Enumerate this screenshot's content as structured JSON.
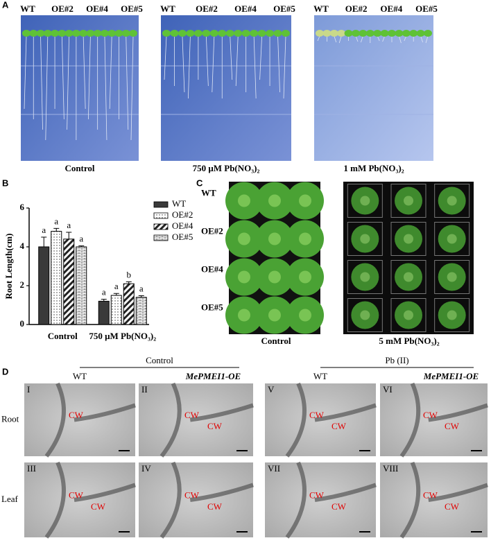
{
  "panel_a": {
    "label": "A",
    "plates": [
      {
        "genotypes": [
          "WT",
          "OE#2",
          "OE#4",
          "OE#5"
        ],
        "caption": "Control"
      },
      {
        "genotypes": [
          "WT",
          "OE#2",
          "OE#4",
          "OE#5"
        ],
        "caption": "750 μM Pb(NO₃)₂"
      },
      {
        "genotypes": [
          "WT",
          "OE#2",
          "OE#4",
          "OE#5"
        ],
        "caption": "1 mM Pb(NO₃)₂"
      }
    ]
  },
  "chart_data": {
    "type": "bar",
    "label": "B",
    "y_label": "Root Length(cm)",
    "categories": [
      "Control",
      "750 μM Pb(NO₃)₂"
    ],
    "series": [
      {
        "name": "WT",
        "color": "#3a3a3a",
        "pattern": "solid",
        "values": [
          4.0,
          1.2
        ],
        "errors": [
          0.5,
          0.1
        ],
        "letters": [
          "a",
          "a"
        ]
      },
      {
        "name": "OE#2",
        "color": "#ffffff",
        "pattern": "dots",
        "values": [
          4.8,
          1.5
        ],
        "errors": [
          0.15,
          0.1
        ],
        "letters": [
          "a",
          "a"
        ]
      },
      {
        "name": "OE#4",
        "color": "#ffffff",
        "pattern": "stripes",
        "values": [
          4.4,
          2.1
        ],
        "errors": [
          0.35,
          0.1
        ],
        "letters": [
          "a",
          "b"
        ]
      },
      {
        "name": "OE#5",
        "color": "#ffffff",
        "pattern": "bricks",
        "values": [
          4.0,
          1.4
        ],
        "errors": [
          0.05,
          0.08
        ],
        "letters": [
          "a",
          "a"
        ]
      }
    ],
    "ylim": [
      0,
      6
    ],
    "yticks": [
      0,
      2,
      4,
      6
    ]
  },
  "panel_c": {
    "label": "C",
    "rows": [
      "WT",
      "OE#2",
      "OE#4",
      "OE#5"
    ],
    "captions": [
      "Control",
      "5 mM Pb(NO₃)₂"
    ]
  },
  "panel_d": {
    "label": "D",
    "groups": [
      {
        "title": "Control",
        "columns": [
          "WT",
          "MePMEI1-OE"
        ]
      },
      {
        "title": "Pb (II)",
        "columns": [
          "WT",
          "MePMEI1-OE"
        ]
      }
    ],
    "rows": [
      "Root",
      "Leaf"
    ],
    "images": [
      {
        "numeral": "I",
        "marks": [
          "CW"
        ]
      },
      {
        "numeral": "II",
        "marks": [
          "CW",
          "CW"
        ]
      },
      {
        "numeral": "V",
        "marks": [
          "CW",
          "CW"
        ]
      },
      {
        "numeral": "VI",
        "marks": [
          "CW",
          "CW"
        ]
      },
      {
        "numeral": "III",
        "marks": [
          "CW",
          "CW"
        ]
      },
      {
        "numeral": "IV",
        "marks": [
          "CW",
          "CW"
        ]
      },
      {
        "numeral": "VII",
        "marks": [
          "CW",
          "CW"
        ]
      },
      {
        "numeral": "VIII",
        "marks": [
          "CW",
          "CW"
        ]
      }
    ]
  }
}
